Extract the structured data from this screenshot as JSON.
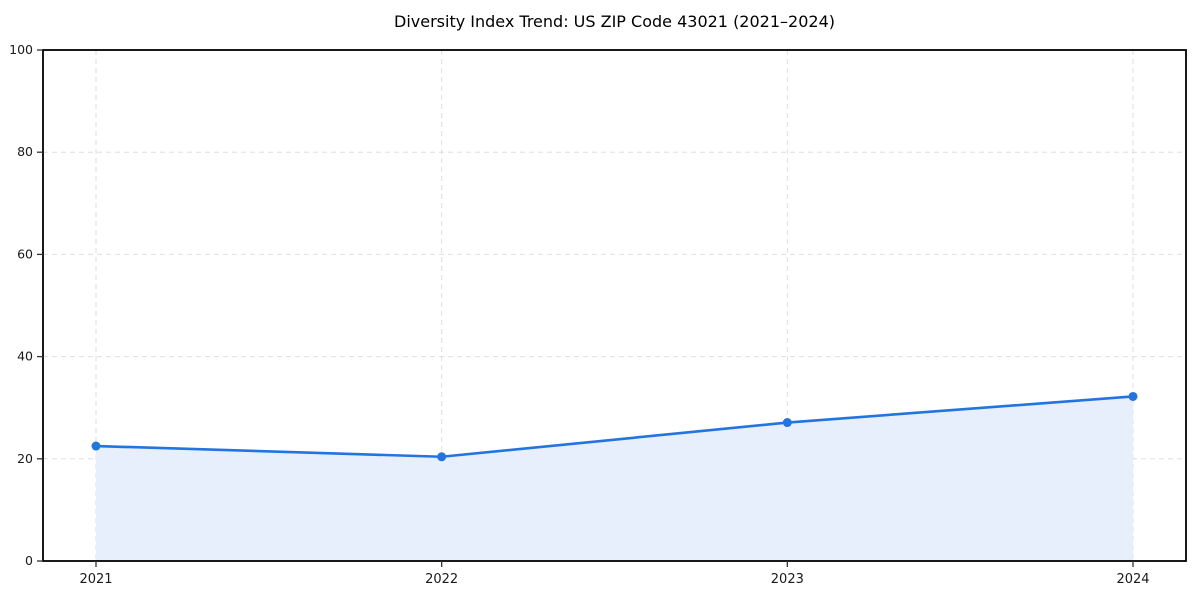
{
  "title": "Diversity Index Trend: US ZIP Code 43021 (2021–2024)",
  "chart_data": {
    "type": "area",
    "title": "Diversity Index Trend: US ZIP Code 43021 (2021–2024)",
    "categories": [
      "2021",
      "2022",
      "2023",
      "2024"
    ],
    "series": [
      {
        "name": "Diversity Index",
        "values": [
          22.5,
          20.4,
          27.1,
          32.2
        ]
      }
    ],
    "xlabel": "",
    "ylabel": "",
    "ylim": [
      0,
      100
    ],
    "yticks": [
      0,
      20,
      40,
      60,
      80,
      100
    ],
    "grid": true,
    "grid_style": "dashed",
    "legend_position": "none",
    "marker": "circle",
    "colors": {
      "line": "#2274e0",
      "marker": "#2274e0",
      "fill": "#e7effc",
      "grid": "#dedede",
      "spine": "#000000",
      "tick": "#333333",
      "text": "#1a1a1a",
      "background": "#ffffff"
    }
  }
}
